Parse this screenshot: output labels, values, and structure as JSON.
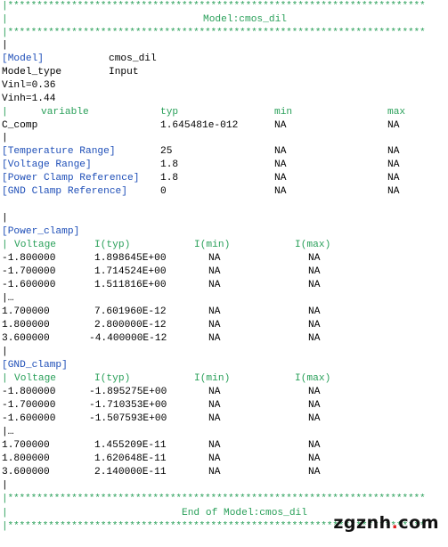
{
  "colors": {
    "comment": "#2aa05a",
    "keyword": "#1f4fb8",
    "text": "#000000",
    "watermark_dot": "#e02020"
  },
  "stars": "|************************************************************************",
  "pipe": "|",
  "header_title": "Model:cmos_dil",
  "footer_title": "End of Model:cmos_dil",
  "model": {
    "key": "[Model]",
    "value": "cmos_dil"
  },
  "model_type": {
    "key": "Model_type",
    "value": "Input"
  },
  "vinl": "Vinl=0.36",
  "vinh": "Vinh=1.44",
  "params_header": {
    "variable": "variable",
    "typ": "typ",
    "min": "min",
    "max": "max"
  },
  "c_comp": {
    "name": "C_comp",
    "typ": "1.645481e-012",
    "min": "NA",
    "max": "NA"
  },
  "ranges": [
    {
      "name": "[Temperature Range]",
      "typ": "25",
      "min": "NA",
      "max": "NA"
    },
    {
      "name": "[Voltage Range]",
      "typ": "1.8",
      "min": "NA",
      "max": "NA"
    },
    {
      "name": "[Power Clamp Reference]",
      "typ": "1.8",
      "min": "NA",
      "max": "NA"
    },
    {
      "name": "[GND Clamp Reference]",
      "typ": "0",
      "min": "NA",
      "max": "NA"
    }
  ],
  "power_clamp": {
    "title": "[Power_clamp]",
    "header": {
      "voltage": "Voltage",
      "typ": "I(typ)",
      "min": "I(min)",
      "max": "I(max)"
    },
    "rows_a": [
      {
        "v": "-1.800000",
        "typ": "1.898645E+00",
        "min": "NA",
        "max": "NA"
      },
      {
        "v": "-1.700000",
        "typ": "1.714524E+00",
        "min": "NA",
        "max": "NA"
      },
      {
        "v": "-1.600000",
        "typ": "1.511816E+00",
        "min": "NA",
        "max": "NA"
      }
    ],
    "ellipsis": "|…",
    "rows_b": [
      {
        "v": "1.700000",
        "typ": "7.601960E-12",
        "min": "NA",
        "max": "NA"
      },
      {
        "v": "1.800000",
        "typ": "2.800000E-12",
        "min": "NA",
        "max": "NA"
      },
      {
        "v": "3.600000",
        "typ": "-4.400000E-12",
        "min": "NA",
        "max": "NA"
      }
    ]
  },
  "gnd_clamp": {
    "title": "[GND_clamp]",
    "header": {
      "voltage": "Voltage",
      "typ": "I(typ)",
      "min": "I(min)",
      "max": "I(max)"
    },
    "rows_a": [
      {
        "v": "-1.800000",
        "typ": "-1.895275E+00",
        "min": "NA",
        "max": "NA"
      },
      {
        "v": "-1.700000",
        "typ": "-1.710353E+00",
        "min": "NA",
        "max": "NA"
      },
      {
        "v": "-1.600000",
        "typ": "-1.507593E+00",
        "min": "NA",
        "max": "NA"
      }
    ],
    "ellipsis": "|…",
    "rows_b": [
      {
        "v": "1.700000",
        "typ": "1.455209E-11",
        "min": "NA",
        "max": "NA"
      },
      {
        "v": "1.800000",
        "typ": "1.620648E-11",
        "min": "NA",
        "max": "NA"
      },
      {
        "v": "3.600000",
        "typ": "2.140000E-11",
        "min": "NA",
        "max": "NA"
      }
    ]
  },
  "watermark": {
    "left": "zgznh",
    "dot": ".",
    "right": "com"
  }
}
